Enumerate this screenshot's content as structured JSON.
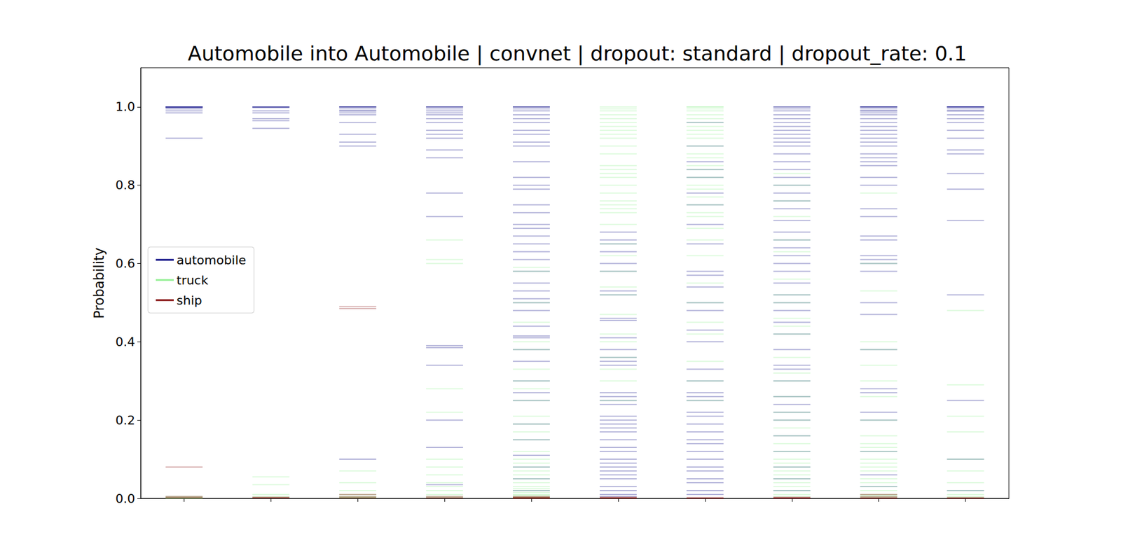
{
  "chart_data": {
    "type": "scatter",
    "marker": "hline",
    "title": "Automobile into Automobile | convnet | dropout: standard | dropout_rate: 0.1",
    "y_label": "Probability",
    "categories": [
      null,
      null,
      null,
      null,
      null,
      null,
      null,
      null,
      null,
      null
    ],
    "ylim": [
      0,
      1.1
    ],
    "yticks": [
      {
        "value": 0,
        "label": "0.0"
      },
      {
        "value": 0.2,
        "label": "0.2"
      },
      {
        "value": 0.4,
        "label": "0.4"
      },
      {
        "value": 0.6,
        "label": "0.6"
      },
      {
        "value": 0.8,
        "label": "0.8"
      },
      {
        "value": 1,
        "label": "1.0"
      }
    ],
    "grid": false,
    "legend": "center left",
    "series": [
      {
        "name": "automobile",
        "color": "#000080",
        "values": [
          [
            1,
            1,
            1,
            1,
            0.999,
            0.998,
            0.995,
            0.99,
            0.985,
            0.92
          ],
          [
            1,
            1,
            1,
            0.998,
            0.99,
            0.985,
            0.97,
            0.965,
            0.945
          ],
          [
            1,
            1,
            1,
            1,
            0.995,
            0.99,
            0.99,
            0.985,
            0.98,
            0.96,
            0.93,
            0.91,
            0.9,
            0.1
          ],
          [
            1,
            1,
            1,
            0.995,
            0.99,
            0.985,
            0.98,
            0.97,
            0.96,
            0.94,
            0.93,
            0.92,
            0.89,
            0.87,
            0.78,
            0.72,
            0.39,
            0.385,
            0.34,
            0.2,
            0.13,
            0.035
          ],
          [
            1,
            1,
            1,
            0.995,
            0.99,
            0.98,
            0.97,
            0.96,
            0.94,
            0.93,
            0.91,
            0.9,
            0.86,
            0.82,
            0.8,
            0.79,
            0.75,
            0.73,
            0.7,
            0.69,
            0.67,
            0.65,
            0.63,
            0.61,
            0.58,
            0.55,
            0.53,
            0.51,
            0.5,
            0.48,
            0.44,
            0.415,
            0.41,
            0.38,
            0.35,
            0.3,
            0.27,
            0.25,
            0.19,
            0.15,
            0.11,
            0.08,
            0.05,
            0.02
          ],
          [
            0.68,
            0.66,
            0.65,
            0.63,
            0.6,
            0.58,
            0.53,
            0.52,
            0.46,
            0.455,
            0.41,
            0.38,
            0.36,
            0.35,
            0.34,
            0.27,
            0.26,
            0.25,
            0.24,
            0.21,
            0.2,
            0.19,
            0.18,
            0.17,
            0.15,
            0.13,
            0.12,
            0.1,
            0.09,
            0.08,
            0.07,
            0.06,
            0.05,
            0.03,
            0.02,
            0.01,
            0.005
          ],
          [
            0.96,
            0.9,
            0.86,
            0.84,
            0.82,
            0.78,
            0.75,
            0.7,
            0.65,
            0.58,
            0.57,
            0.54,
            0.5,
            0.48,
            0.43,
            0.4,
            0.33,
            0.3,
            0.27,
            0.26,
            0.25,
            0.22,
            0.21,
            0.19,
            0.17,
            0.15,
            0.14,
            0.12,
            0.1,
            0.08,
            0.07,
            0.05,
            0.04,
            0.02,
            0.01
          ],
          [
            1,
            1,
            0.995,
            0.99,
            0.98,
            0.97,
            0.96,
            0.95,
            0.94,
            0.93,
            0.92,
            0.91,
            0.9,
            0.88,
            0.86,
            0.84,
            0.82,
            0.8,
            0.78,
            0.76,
            0.74,
            0.71,
            0.68,
            0.66,
            0.64,
            0.62,
            0.6,
            0.58,
            0.55,
            0.52,
            0.5,
            0.48,
            0.45,
            0.42,
            0.38,
            0.34,
            0.33,
            0.3,
            0.26,
            0.24,
            0.22,
            0.2,
            0.16,
            0.12,
            0.08,
            0.05,
            0.02
          ],
          [
            1,
            1,
            1,
            1,
            0.995,
            0.99,
            0.99,
            0.985,
            0.98,
            0.97,
            0.96,
            0.95,
            0.94,
            0.93,
            0.92,
            0.91,
            0.9,
            0.88,
            0.87,
            0.86,
            0.85,
            0.82,
            0.8,
            0.74,
            0.72,
            0.67,
            0.66,
            0.62,
            0.61,
            0.6,
            0.58,
            0.5,
            0.47,
            0.38,
            0.28,
            0.27,
            0.22,
            0.2,
            0.12,
            0.06,
            0.03
          ],
          [
            1,
            1,
            1,
            1,
            1,
            0.995,
            0.99,
            0.99,
            0.98,
            0.97,
            0.96,
            0.94,
            0.92,
            0.89,
            0.88,
            0.83,
            0.79,
            0.71,
            0.52,
            0.25,
            0.1,
            0.02
          ]
        ]
      },
      {
        "name": "truck",
        "color": "#90ee90",
        "values": [
          [
            0.005,
            0.003,
            0.002,
            0.001,
            0
          ],
          [
            0.055,
            0.035,
            0.01,
            0.005,
            0.002
          ],
          [
            0.07,
            0.04,
            0.02,
            0.01,
            0.005,
            0.003,
            0.002,
            0.001
          ],
          [
            0.66,
            0.61,
            0.6,
            0.28,
            0.22,
            0.1,
            0.08,
            0.06,
            0.04,
            0.03,
            0.02,
            0.01,
            0.005,
            0.002
          ],
          [
            0.59,
            0.58,
            0.5,
            0.45,
            0.4,
            0.38,
            0.33,
            0.3,
            0.28,
            0.25,
            0.21,
            0.19,
            0.17,
            0.15,
            0.12,
            0.1,
            0.09,
            0.08,
            0.07,
            0.06,
            0.05,
            0.04,
            0.03,
            0.025,
            0.02,
            0.015,
            0.01,
            0.008,
            0.005,
            0.003,
            0.002,
            0.001
          ],
          [
            1,
            0.995,
            0.99,
            0.98,
            0.97,
            0.96,
            0.95,
            0.94,
            0.93,
            0.92,
            0.9,
            0.88,
            0.85,
            0.84,
            0.83,
            0.82,
            0.8,
            0.78,
            0.76,
            0.75,
            0.74,
            0.73,
            0.7,
            0.65,
            0.62,
            0.58,
            0.54,
            0.52,
            0.47,
            0.42,
            0.4,
            0.36,
            0.33,
            0.3,
            0.25
          ],
          [
            1,
            1,
            0.995,
            0.99,
            0.98,
            0.97,
            0.96,
            0.95,
            0.94,
            0.93,
            0.92,
            0.9,
            0.88,
            0.87,
            0.85,
            0.84,
            0.82,
            0.8,
            0.79,
            0.77,
            0.75,
            0.73,
            0.72,
            0.69,
            0.66,
            0.62,
            0.55,
            0.5,
            0.45,
            0.42,
            0.35,
            0.3,
            0.25
          ],
          [
            0.83,
            0.8,
            0.76,
            0.72,
            0.66,
            0.63,
            0.56,
            0.52,
            0.5,
            0.46,
            0.44,
            0.42,
            0.36,
            0.32,
            0.3,
            0.26,
            0.22,
            0.2,
            0.18,
            0.16,
            0.14,
            0.12,
            0.1,
            0.09,
            0.08,
            0.07,
            0.06,
            0.05,
            0.04,
            0.03,
            0.02,
            0.01,
            0.005
          ],
          [
            0.78,
            0.6,
            0.53,
            0.4,
            0.38,
            0.34,
            0.3,
            0.26,
            0.2,
            0.16,
            0.14,
            0.13,
            0.12,
            0.1,
            0.09,
            0.08,
            0.07,
            0.05,
            0.04,
            0.03,
            0.02,
            0.01,
            0.008,
            0.005,
            0.003
          ],
          [
            0.48,
            0.29,
            0.21,
            0.17,
            0.1,
            0.07,
            0.04,
            0.02,
            0.01,
            0.005,
            0.002
          ]
        ]
      },
      {
        "name": "ship",
        "color": "#800000",
        "values": [
          [
            0.08,
            0.005,
            0.003,
            0.001
          ],
          [
            0.003,
            0.002,
            0.001
          ],
          [
            0.49,
            0.485,
            0.01,
            0.005,
            0.002,
            0.001
          ],
          [
            0.005,
            0.002,
            0.001
          ],
          [
            0.005,
            0.003,
            0.002,
            0.001,
            0.001,
            0
          ],
          [
            0.003,
            0.002,
            0.001,
            0
          ],
          [
            0.002,
            0.001,
            0
          ],
          [
            0.003,
            0.002,
            0.001,
            0
          ],
          [
            0.01,
            0.005,
            0.002,
            0.001,
            0
          ],
          [
            0.002,
            0.001,
            0
          ]
        ]
      }
    ]
  }
}
